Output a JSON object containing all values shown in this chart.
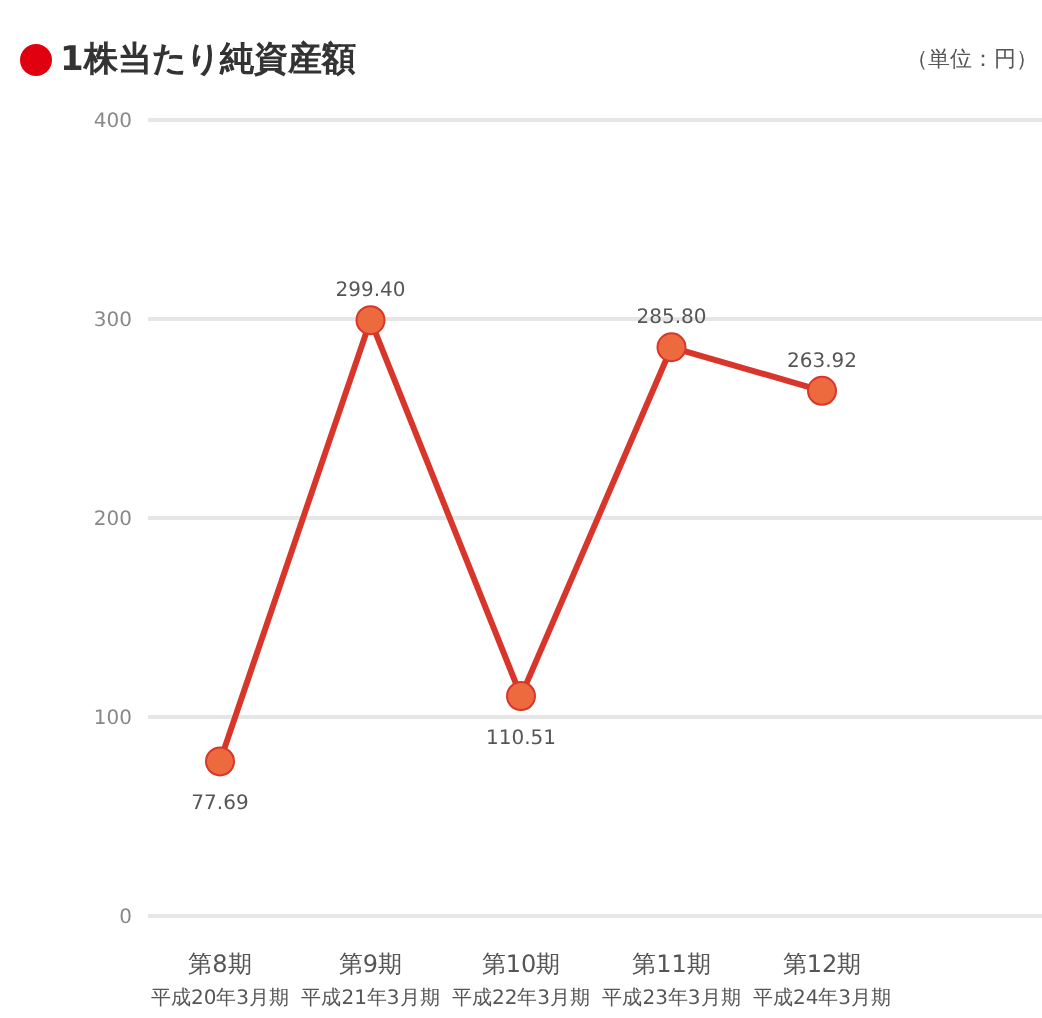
{
  "chart_data": {
    "type": "line",
    "title": "1株当たり純資産額",
    "ylabel": "（単位：円）",
    "categories": [
      "第8期",
      "第9期",
      "第10期",
      "第11期",
      "第12期"
    ],
    "annotations": [
      "平成20年3月期",
      "平成21年3月期",
      "平成22年3月期",
      "平成23年3月期",
      "平成24年3月期"
    ],
    "series": [
      {
        "color": "#d9362b",
        "values": [
          77.69,
          299.4,
          110.51,
          285.8,
          263.92
        ]
      }
    ],
    "value_labels": [
      "77.69",
      "299.40",
      "110.51",
      "285.80",
      "263.92"
    ],
    "ylim": [
      0,
      400
    ],
    "yticks": [
      0,
      100,
      200,
      300,
      400
    ],
    "grid": "y",
    "legend": false,
    "marker": "circle",
    "line_style": "solid"
  }
}
